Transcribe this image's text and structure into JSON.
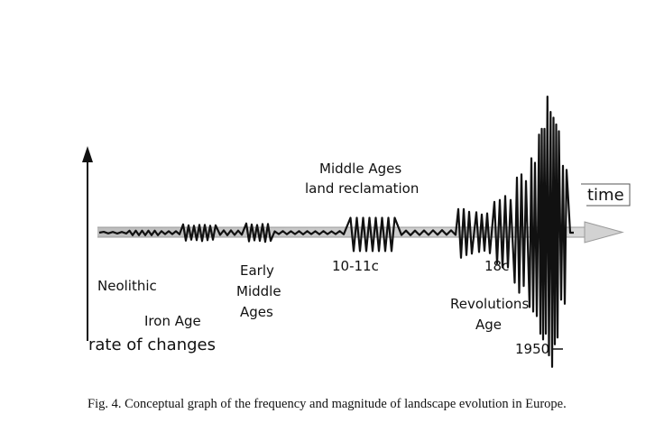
{
  "diagram": {
    "x_axis_label": "time",
    "y_axis_label": "rate of changes",
    "labels": {
      "neolithic": "Neolithic",
      "iron_age": "Iron Age",
      "early_middle_ages": [
        "Early",
        "Middle",
        "Ages"
      ],
      "middle_ages_reclamation": [
        "Middle Ages",
        "land reclamation"
      ],
      "c10_11": "10-11c",
      "c18": "18c",
      "revolutions_age": [
        "Revolutions",
        "Age"
      ],
      "y1950": "1950"
    }
  },
  "caption": "Fig. 4. Conceptual graph of the frequency and magnitude of landscape evolution in Europe."
}
